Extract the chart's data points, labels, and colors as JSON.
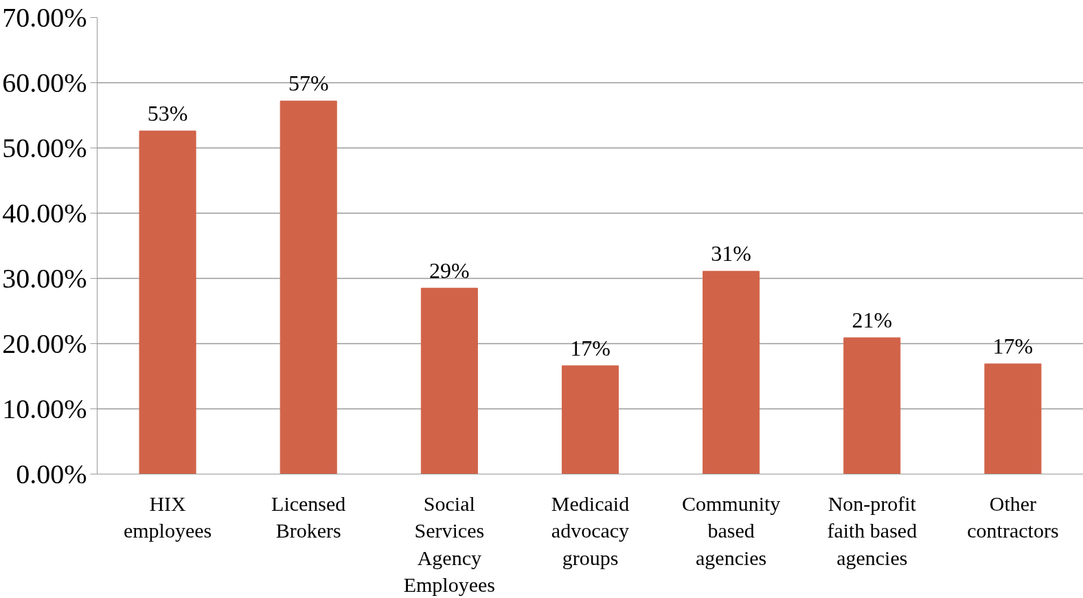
{
  "chart_data": {
    "type": "bar",
    "categories": [
      "HIX employees",
      "Licensed Brokers",
      "Social Services Agency Employees",
      "Medicaid advocacy groups",
      "Community based agencies",
      "Non-profit faith based agencies",
      "Other contractors"
    ],
    "values": [
      52.6,
      57.2,
      28.5,
      16.6,
      31.1,
      20.9,
      16.9
    ],
    "value_labels": [
      "53%",
      "57%",
      "29%",
      "17%",
      "31%",
      "21%",
      "17%"
    ],
    "color": "#d16349",
    "ylim": [
      0,
      70
    ],
    "yticks": [
      {
        "value": 0,
        "label": "0.00%"
      },
      {
        "value": 10,
        "label": "10.00%"
      },
      {
        "value": 20,
        "label": "20.00%"
      },
      {
        "value": 30,
        "label": "30.00%"
      },
      {
        "value": 40,
        "label": "40.00%"
      },
      {
        "value": 50,
        "label": "50.00%"
      },
      {
        "value": 60,
        "label": "60.00%"
      },
      {
        "value": 70,
        "label": "70.00%"
      }
    ],
    "grid": "y"
  }
}
